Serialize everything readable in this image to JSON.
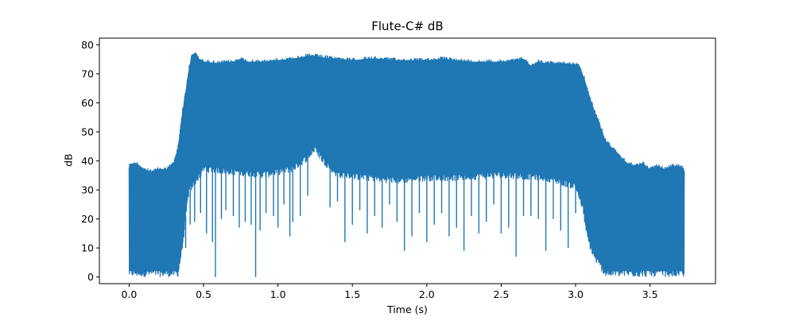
{
  "chart_data": {
    "type": "line",
    "title": "Flute-C# dB",
    "xlabel": "Time (s)",
    "ylabel": "dB",
    "xlim": [
      -0.2,
      3.94
    ],
    "ylim": [
      -2.3,
      82.3
    ],
    "x_ticks": [
      0.0,
      0.5,
      1.0,
      1.5,
      2.0,
      2.5,
      3.0,
      3.5
    ],
    "x_tick_labels": [
      "0.0",
      "0.5",
      "1.0",
      "1.5",
      "2.0",
      "2.5",
      "3.0",
      "3.5"
    ],
    "y_ticks": [
      0,
      10,
      20,
      30,
      40,
      50,
      60,
      70,
      80
    ],
    "y_tick_labels": [
      "0",
      "10",
      "20",
      "30",
      "40",
      "50",
      "60",
      "70",
      "80"
    ],
    "grid": false,
    "series_color": "#1f77b4",
    "series": [
      {
        "upper_envelope": {
          "x": [
            0.0,
            0.05,
            0.1,
            0.15,
            0.2,
            0.25,
            0.3,
            0.33,
            0.35,
            0.38,
            0.4,
            0.42,
            0.44,
            0.47,
            0.5,
            0.6,
            0.7,
            0.75,
            0.8,
            0.9,
            1.0,
            1.1,
            1.2,
            1.25,
            1.3,
            1.4,
            1.5,
            1.6,
            1.7,
            1.8,
            1.9,
            2.0,
            2.1,
            2.2,
            2.3,
            2.4,
            2.5,
            2.6,
            2.65,
            2.7,
            2.75,
            2.8,
            2.9,
            3.0,
            3.03,
            3.06,
            3.1,
            3.15,
            3.2,
            3.25,
            3.3,
            3.35,
            3.4,
            3.45,
            3.5,
            3.55,
            3.6,
            3.65,
            3.7,
            3.73
          ],
          "y": [
            39,
            40,
            38,
            37,
            38,
            38,
            40,
            46,
            55,
            65,
            72,
            77,
            78,
            76,
            75,
            74.5,
            75,
            76,
            75,
            75,
            75.5,
            76,
            77,
            77,
            76.5,
            76,
            75.5,
            76,
            76,
            75.5,
            75.5,
            75.5,
            76,
            75.5,
            75,
            75,
            75,
            75.5,
            76,
            73.5,
            75,
            74.5,
            74.5,
            74,
            73,
            69,
            62,
            55,
            48,
            45,
            42,
            40,
            39,
            40,
            38,
            39,
            38,
            39,
            39,
            38
          ]
        },
        "lower_envelope": {
          "x": [
            0.0,
            0.33,
            0.36,
            0.4,
            0.5,
            0.7,
            0.9,
            1.0,
            1.1,
            1.2,
            1.25,
            1.3,
            1.4,
            1.6,
            1.8,
            2.0,
            2.2,
            2.5,
            2.8,
            3.0,
            3.05,
            3.08,
            3.12,
            3.16,
            3.2,
            3.73
          ],
          "y": [
            0,
            0,
            10,
            28,
            36,
            35,
            34,
            35,
            36,
            40,
            43,
            39,
            34,
            33,
            32,
            33,
            33,
            34,
            33,
            30,
            22,
            12,
            6,
            3,
            0,
            0
          ]
        },
        "deep_dips": {
          "x": [
            0.38,
            0.41,
            0.44,
            0.48,
            0.52,
            0.56,
            0.58,
            0.62,
            0.65,
            0.7,
            0.74,
            0.78,
            0.82,
            0.85,
            0.88,
            0.92,
            0.97,
            1.0,
            1.04,
            1.08,
            1.1,
            1.15,
            1.2,
            1.35,
            1.4,
            1.45,
            1.5,
            1.55,
            1.6,
            1.65,
            1.7,
            1.75,
            1.8,
            1.85,
            1.9,
            1.95,
            2.0,
            2.05,
            2.1,
            2.15,
            2.2,
            2.25,
            2.3,
            2.35,
            2.4,
            2.45,
            2.5,
            2.55,
            2.6,
            2.65,
            2.7,
            2.75,
            2.8,
            2.85,
            2.9,
            2.95,
            3.0
          ],
          "y": [
            10,
            18,
            19,
            22,
            15,
            12,
            0,
            20,
            23,
            21,
            17,
            19,
            18,
            0,
            16,
            22,
            21,
            17,
            25,
            14,
            19,
            21,
            28,
            24,
            26,
            12,
            18,
            23,
            15,
            21,
            17,
            25,
            19,
            9,
            14,
            22,
            12,
            18,
            22,
            14,
            17,
            9,
            21,
            15,
            19,
            25,
            15,
            17,
            7,
            21,
            21,
            20,
            9,
            20,
            16,
            10,
            22
          ]
        }
      }
    ]
  }
}
